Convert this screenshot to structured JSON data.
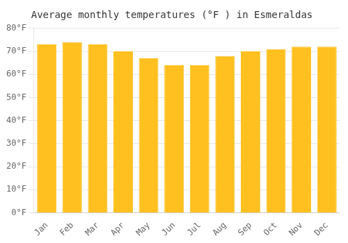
{
  "chart_data": {
    "type": "bar",
    "title": "Average monthly temperatures (°F ) in Esmeraldas",
    "categories": [
      "Jan",
      "Feb",
      "Mar",
      "Apr",
      "May",
      "Jun",
      "Jul",
      "Aug",
      "Sep",
      "Oct",
      "Nov",
      "Dec"
    ],
    "values": [
      73,
      74,
      73,
      70,
      67,
      64,
      64,
      68,
      70,
      71,
      72,
      72
    ],
    "color": "#FFC020",
    "ylim": [
      0,
      80
    ],
    "yticks": [
      {
        "value": 0,
        "label": "0°F"
      },
      {
        "value": 10,
        "label": "10°F"
      },
      {
        "value": 20,
        "label": "20°F"
      },
      {
        "value": 30,
        "label": "30°F"
      },
      {
        "value": 40,
        "label": "40°F"
      },
      {
        "value": 50,
        "label": "50°F"
      },
      {
        "value": 60,
        "label": "60°F"
      },
      {
        "value": 70,
        "label": "70°F"
      },
      {
        "value": 80,
        "label": "80°F"
      }
    ],
    "grid": true
  }
}
